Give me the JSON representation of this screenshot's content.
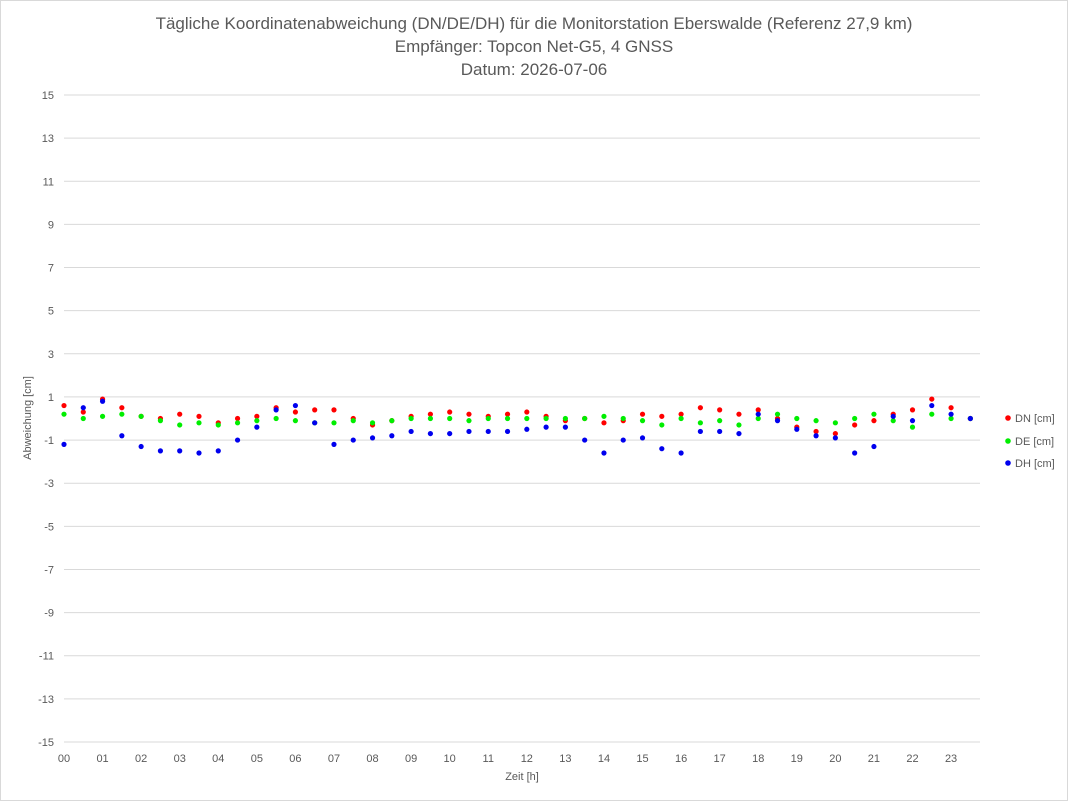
{
  "chart_data": {
    "type": "scatter",
    "title": "Tägliche Koordinatenabweichung (DN/DE/DH) für die Monitorstation Eberswalde (Referenz 27,9 km)",
    "subtitle_1": "Empfänger: Topcon Net-G5, 4 GNSS",
    "subtitle_2": "Datum: 2026-07-06",
    "xlabel": "Zeit [h]",
    "ylabel": "Abweichung [cm]",
    "xlim": [
      0,
      23.75
    ],
    "ylim": [
      -15,
      15
    ],
    "x_tick_labels": [
      "00",
      "01",
      "02",
      "03",
      "04",
      "05",
      "06",
      "07",
      "08",
      "09",
      "10",
      "11",
      "12",
      "13",
      "14",
      "15",
      "16",
      "17",
      "18",
      "19",
      "20",
      "21",
      "22",
      "23"
    ],
    "y_tick_labels": [
      "15",
      "13",
      "11",
      "9",
      "7",
      "5",
      "3",
      "1",
      "-1",
      "-3",
      "-5",
      "-7",
      "-9",
      "-11",
      "-13",
      "-15"
    ],
    "grid": true,
    "legend_position": "right",
    "series": [
      {
        "name": "DN [cm]",
        "color": "#ff0000",
        "x": [
          0.0,
          0.5,
          1.0,
          1.5,
          2.0,
          2.5,
          3.0,
          3.5,
          4.0,
          4.5,
          5.0,
          5.5,
          6.0,
          6.5,
          7.0,
          7.5,
          8.0,
          8.5,
          9.0,
          9.5,
          10.0,
          10.5,
          11.0,
          11.5,
          12.0,
          12.5,
          13.0,
          13.5,
          14.0,
          14.5,
          15.0,
          15.5,
          16.0,
          16.5,
          17.0,
          17.5,
          18.0,
          18.5,
          19.0,
          19.5,
          20.0,
          20.5,
          21.0,
          21.5,
          22.0,
          22.5,
          23.0,
          23.5
        ],
        "y": [
          0.6,
          0.3,
          0.9,
          0.5,
          0.1,
          0.0,
          0.2,
          0.1,
          -0.2,
          0.0,
          0.1,
          0.5,
          0.3,
          0.4,
          0.4,
          0.0,
          -0.3,
          -0.1,
          0.1,
          0.2,
          0.3,
          0.2,
          0.1,
          0.2,
          0.3,
          0.1,
          -0.1,
          0.0,
          -0.2,
          -0.1,
          0.2,
          0.1,
          0.2,
          0.5,
          0.4,
          0.2,
          0.4,
          0.0,
          -0.4,
          -0.6,
          -0.7,
          -0.3,
          -0.1,
          0.2,
          0.4,
          0.9,
          0.5,
          0.0
        ]
      },
      {
        "name": "DE [cm]",
        "color": "#00ee00",
        "x": [
          0.0,
          0.5,
          1.0,
          1.5,
          2.0,
          2.5,
          3.0,
          3.5,
          4.0,
          4.5,
          5.0,
          5.5,
          6.0,
          6.5,
          7.0,
          7.5,
          8.0,
          8.5,
          9.0,
          9.5,
          10.0,
          10.5,
          11.0,
          11.5,
          12.0,
          12.5,
          13.0,
          13.5,
          14.0,
          14.5,
          15.0,
          15.5,
          16.0,
          16.5,
          17.0,
          17.5,
          18.0,
          18.5,
          19.0,
          19.5,
          20.0,
          20.5,
          21.0,
          21.5,
          22.0,
          22.5,
          23.0,
          23.5
        ],
        "y": [
          0.2,
          0.0,
          0.1,
          0.2,
          0.1,
          -0.1,
          -0.3,
          -0.2,
          -0.3,
          -0.2,
          -0.1,
          0.0,
          -0.1,
          -0.2,
          -0.2,
          -0.1,
          -0.2,
          -0.1,
          0.0,
          0.0,
          0.0,
          -0.1,
          0.0,
          0.0,
          0.0,
          0.0,
          0.0,
          0.0,
          0.1,
          0.0,
          -0.1,
          -0.3,
          0.0,
          -0.2,
          -0.1,
          -0.3,
          0.0,
          0.2,
          0.0,
          -0.1,
          -0.2,
          0.0,
          0.2,
          -0.1,
          -0.4,
          0.2,
          0.0,
          0.0
        ]
      },
      {
        "name": "DH [cm]",
        "color": "#0000ee",
        "x": [
          0.0,
          0.5,
          1.0,
          1.5,
          2.0,
          2.5,
          3.0,
          3.5,
          4.0,
          4.5,
          5.0,
          5.5,
          6.0,
          6.5,
          7.0,
          7.5,
          8.0,
          8.5,
          9.0,
          9.5,
          10.0,
          10.5,
          11.0,
          11.5,
          12.0,
          12.5,
          13.0,
          13.5,
          14.0,
          14.5,
          15.0,
          15.5,
          16.0,
          16.5,
          17.0,
          17.5,
          18.0,
          18.5,
          19.0,
          19.5,
          20.0,
          20.5,
          21.0,
          21.5,
          22.0,
          22.5,
          23.0,
          23.5
        ],
        "y": [
          -1.2,
          0.5,
          0.8,
          -0.8,
          -1.3,
          -1.5,
          -1.5,
          -1.6,
          -1.5,
          -1.0,
          -0.4,
          0.4,
          0.6,
          -0.2,
          -1.2,
          -1.0,
          -0.9,
          -0.8,
          -0.6,
          -0.7,
          -0.7,
          -0.6,
          -0.6,
          -0.6,
          -0.5,
          -0.4,
          -0.4,
          -1.0,
          -1.6,
          -1.0,
          -0.9,
          -1.4,
          -1.6,
          -0.6,
          -0.6,
          -0.7,
          0.2,
          -0.1,
          -0.5,
          -0.8,
          -0.9,
          -1.6,
          -1.3,
          0.1,
          -0.1,
          0.6,
          0.2,
          0.0
        ]
      }
    ]
  }
}
